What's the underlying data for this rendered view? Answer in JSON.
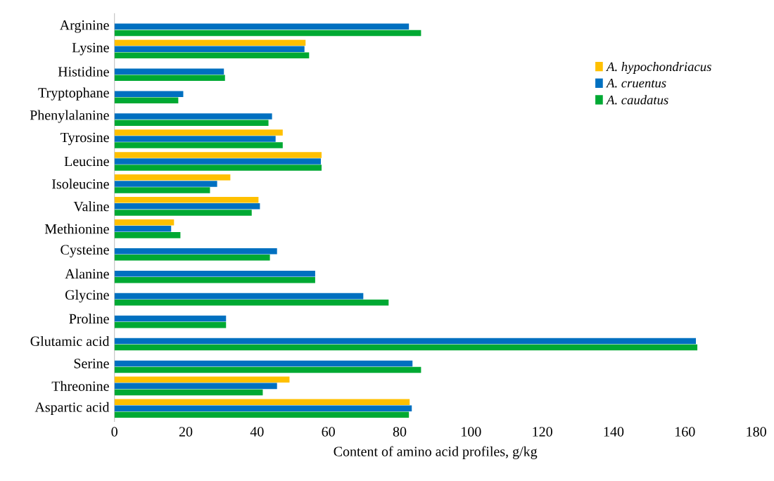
{
  "chart_data": {
    "type": "bar",
    "orientation": "horizontal",
    "xlabel": "Content of amino acid profiles, g/kg",
    "categories": [
      "Arginine",
      "Lysine",
      "Histidine",
      "Tryptophane",
      "Phenylalanine",
      "Tyrosine",
      "Leucine",
      "Isoleucine",
      "Valine",
      "Methionine",
      "Cysteine",
      "Alanine",
      "Glycine",
      "Proline",
      "Glutamic acid",
      "Serine",
      "Threonine",
      "Aspartic acid"
    ],
    "series": [
      {
        "name": "A. hypochondriacus",
        "color": "#ffc000",
        "values": [
          null,
          53.6,
          null,
          null,
          null,
          47.2,
          58.1,
          32.5,
          40.4,
          16.7,
          null,
          null,
          null,
          null,
          null,
          null,
          49.1,
          82.8
        ]
      },
      {
        "name": "A. cruentus",
        "color": "#0070c0",
        "values": [
          82.6,
          53.3,
          30.7,
          19.3,
          44.2,
          45.2,
          57.9,
          28.8,
          40.8,
          15.9,
          45.6,
          56.3,
          69.8,
          31.3,
          163.1,
          83.6,
          45.6,
          83.4
        ]
      },
      {
        "name": "A. caudatus",
        "color": "#00a933",
        "values": [
          86.0,
          54.6,
          31.0,
          17.9,
          43.2,
          47.2,
          58.1,
          26.8,
          38.5,
          18.5,
          43.6,
          56.3,
          76.9,
          31.3,
          163.5,
          86.0,
          41.6,
          82.6
        ]
      }
    ],
    "xlim": [
      0,
      180
    ],
    "xticks": [
      0,
      20,
      40,
      60,
      80,
      100,
      120,
      140,
      160,
      180
    ],
    "legend": "top right",
    "grid": false
  }
}
